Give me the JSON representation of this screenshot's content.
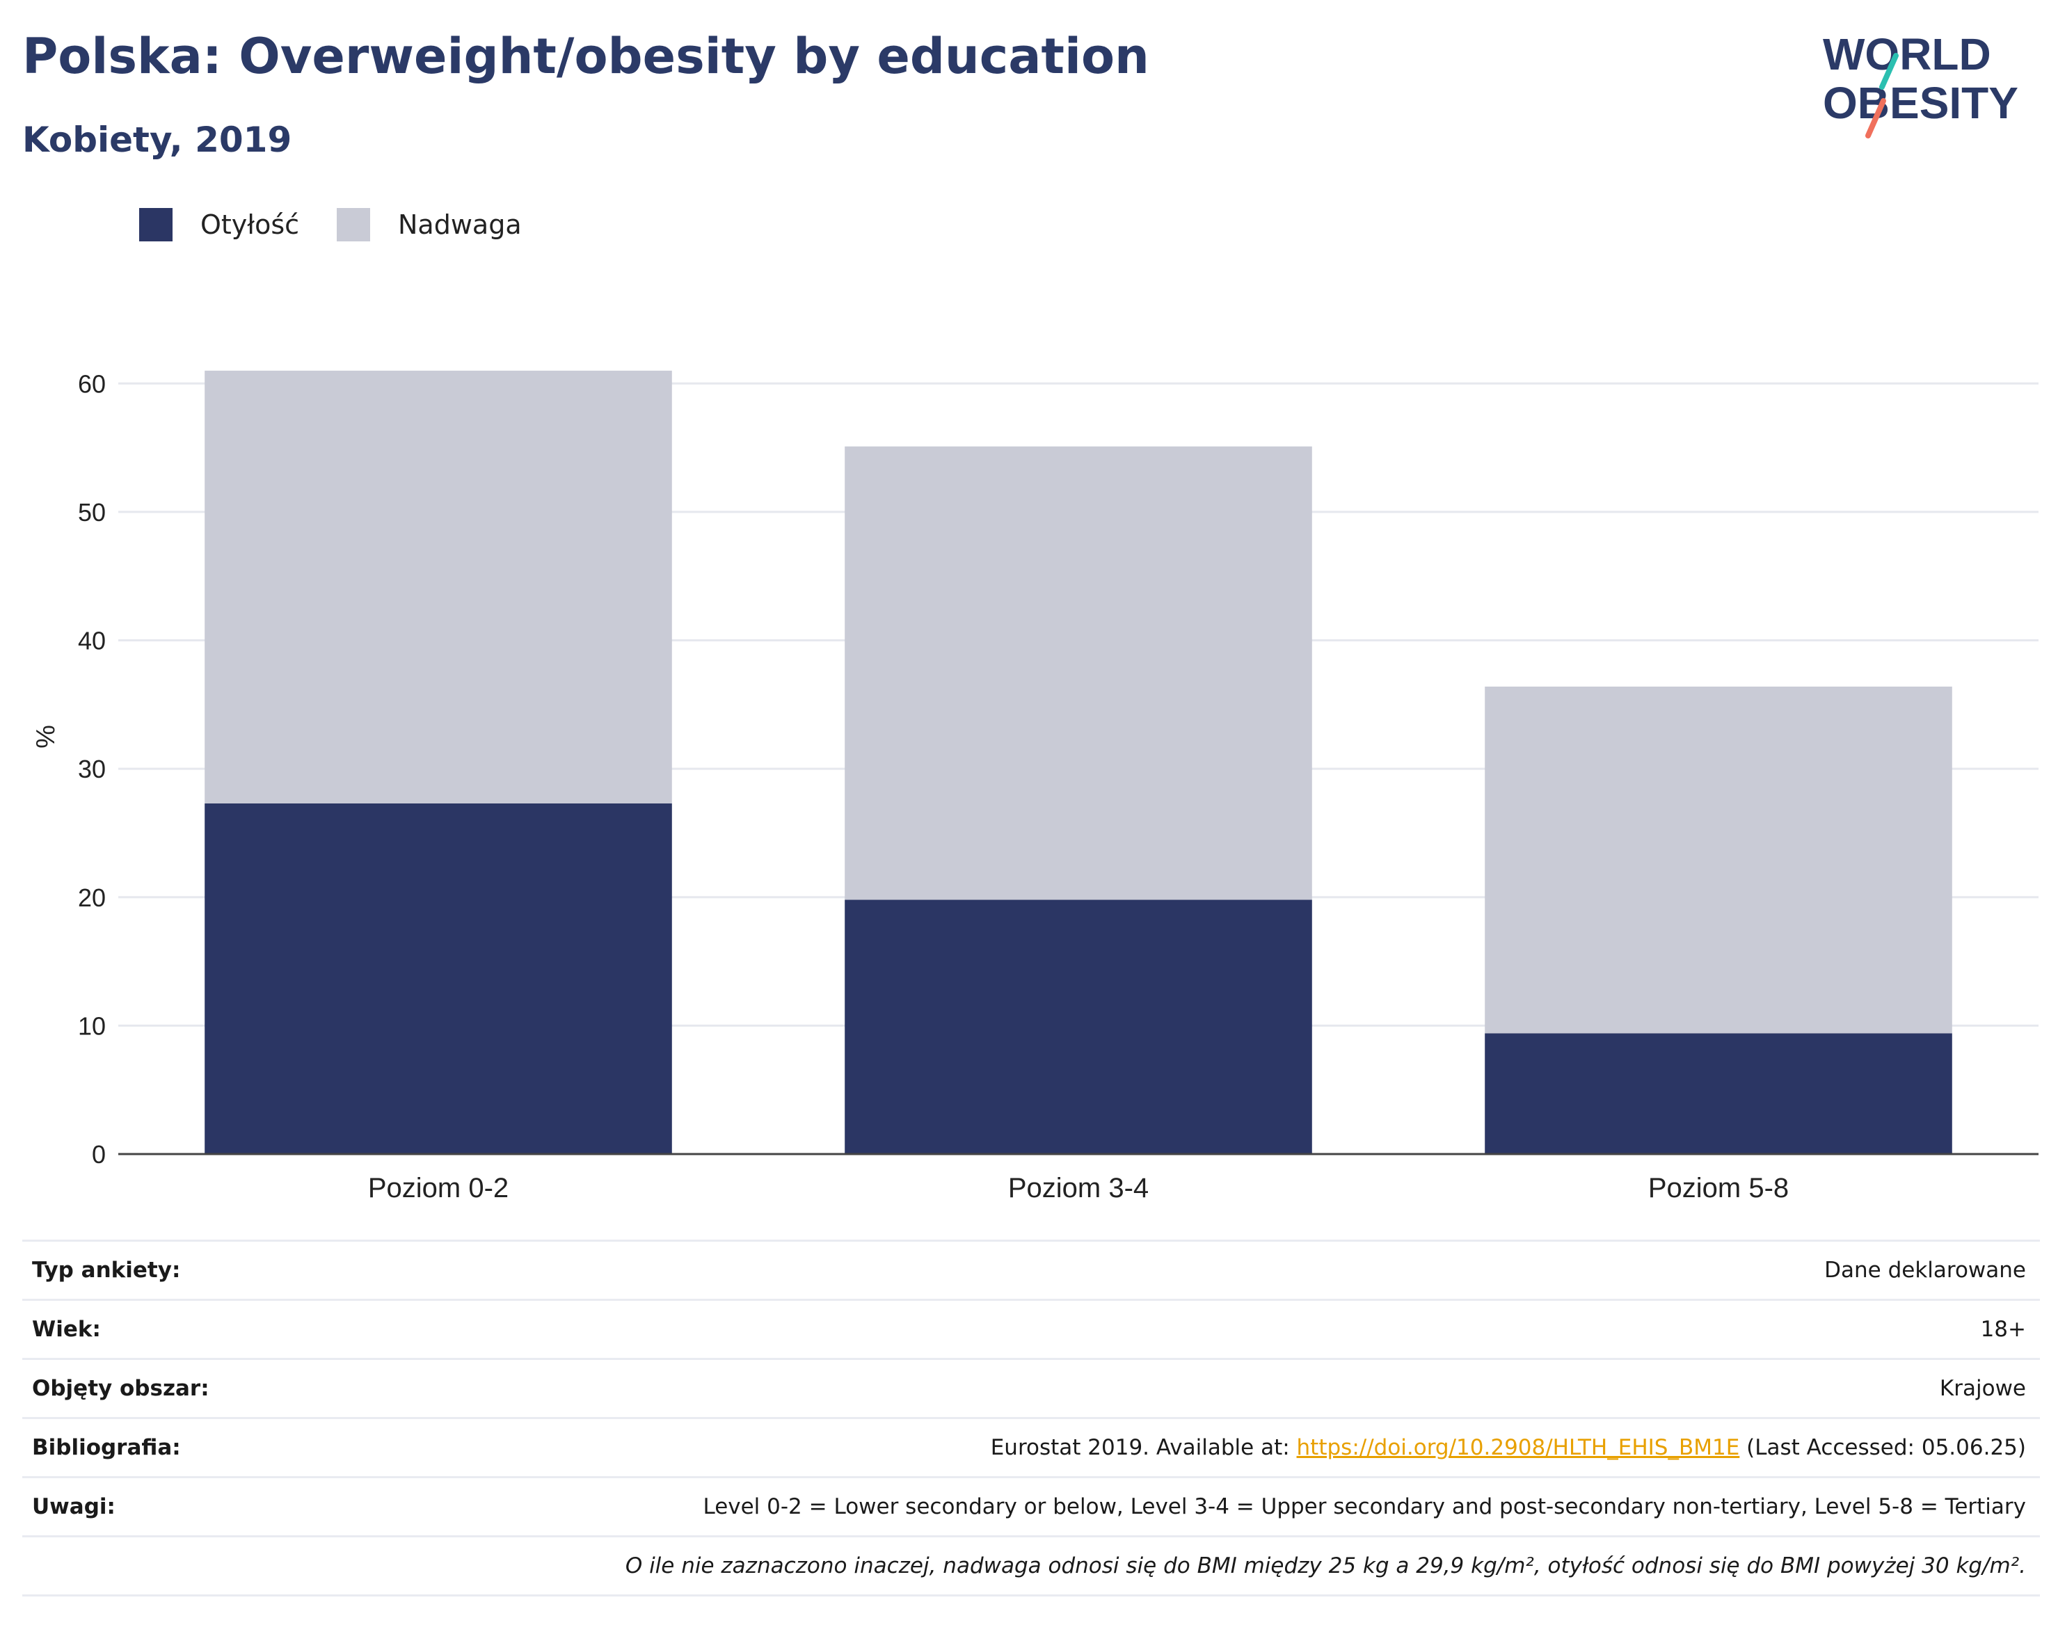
{
  "header": {
    "title": "Polska: Overweight/obesity by education",
    "subtitle": "Kobiety, 2019",
    "logo_line1": "WORLD",
    "logo_line2": "OBESITY"
  },
  "colors": {
    "obesity": "#2b3664",
    "overweight": "#c9cbd6",
    "title": "#2b3a67",
    "link": "#e8a000",
    "logo_teal": "#2bbfb0",
    "logo_coral": "#f0705c"
  },
  "chart_data": {
    "type": "bar",
    "stacked": true,
    "categories": [
      "Poziom 0-2",
      "Poziom 3-4",
      "Poziom 5-8"
    ],
    "series": [
      {
        "name": "Otyłość",
        "values": [
          27.3,
          19.8,
          9.4
        ]
      },
      {
        "name": "Nadwaga",
        "values": [
          33.7,
          35.3,
          27.0
        ]
      }
    ],
    "ylabel": "%",
    "ylim": [
      0,
      65
    ],
    "yticks": [
      0,
      10,
      20,
      30,
      40,
      50,
      60
    ],
    "grid": true,
    "legend": "top-left"
  },
  "meta": {
    "rows": [
      {
        "label": "Typ ankiety:",
        "value": "Dane deklarowane"
      },
      {
        "label": "Wiek:",
        "value": "18+"
      },
      {
        "label": "Objęty obszar:",
        "value": "Krajowe"
      }
    ],
    "bibliography": {
      "label": "Bibliografia:",
      "prefix": "Eurostat 2019. Available at: ",
      "link": "https://doi.org/10.2908/HLTH_EHIS_BM1E",
      "suffix": " (Last Accessed: 05.06.25)"
    },
    "notes": {
      "label": "Uwagi:",
      "value": "Level 0-2 = Lower secondary or below, Level 3-4 = Upper secondary and post-secondary non-tertiary, Level 5-8 = Tertiary"
    },
    "footnote": "O ile nie zaznaczono inaczej, nadwaga odnosi się do BMI między 25 kg a 29,9 kg/m², otyłość odnosi się do BMI powyżej 30 kg/m²."
  }
}
